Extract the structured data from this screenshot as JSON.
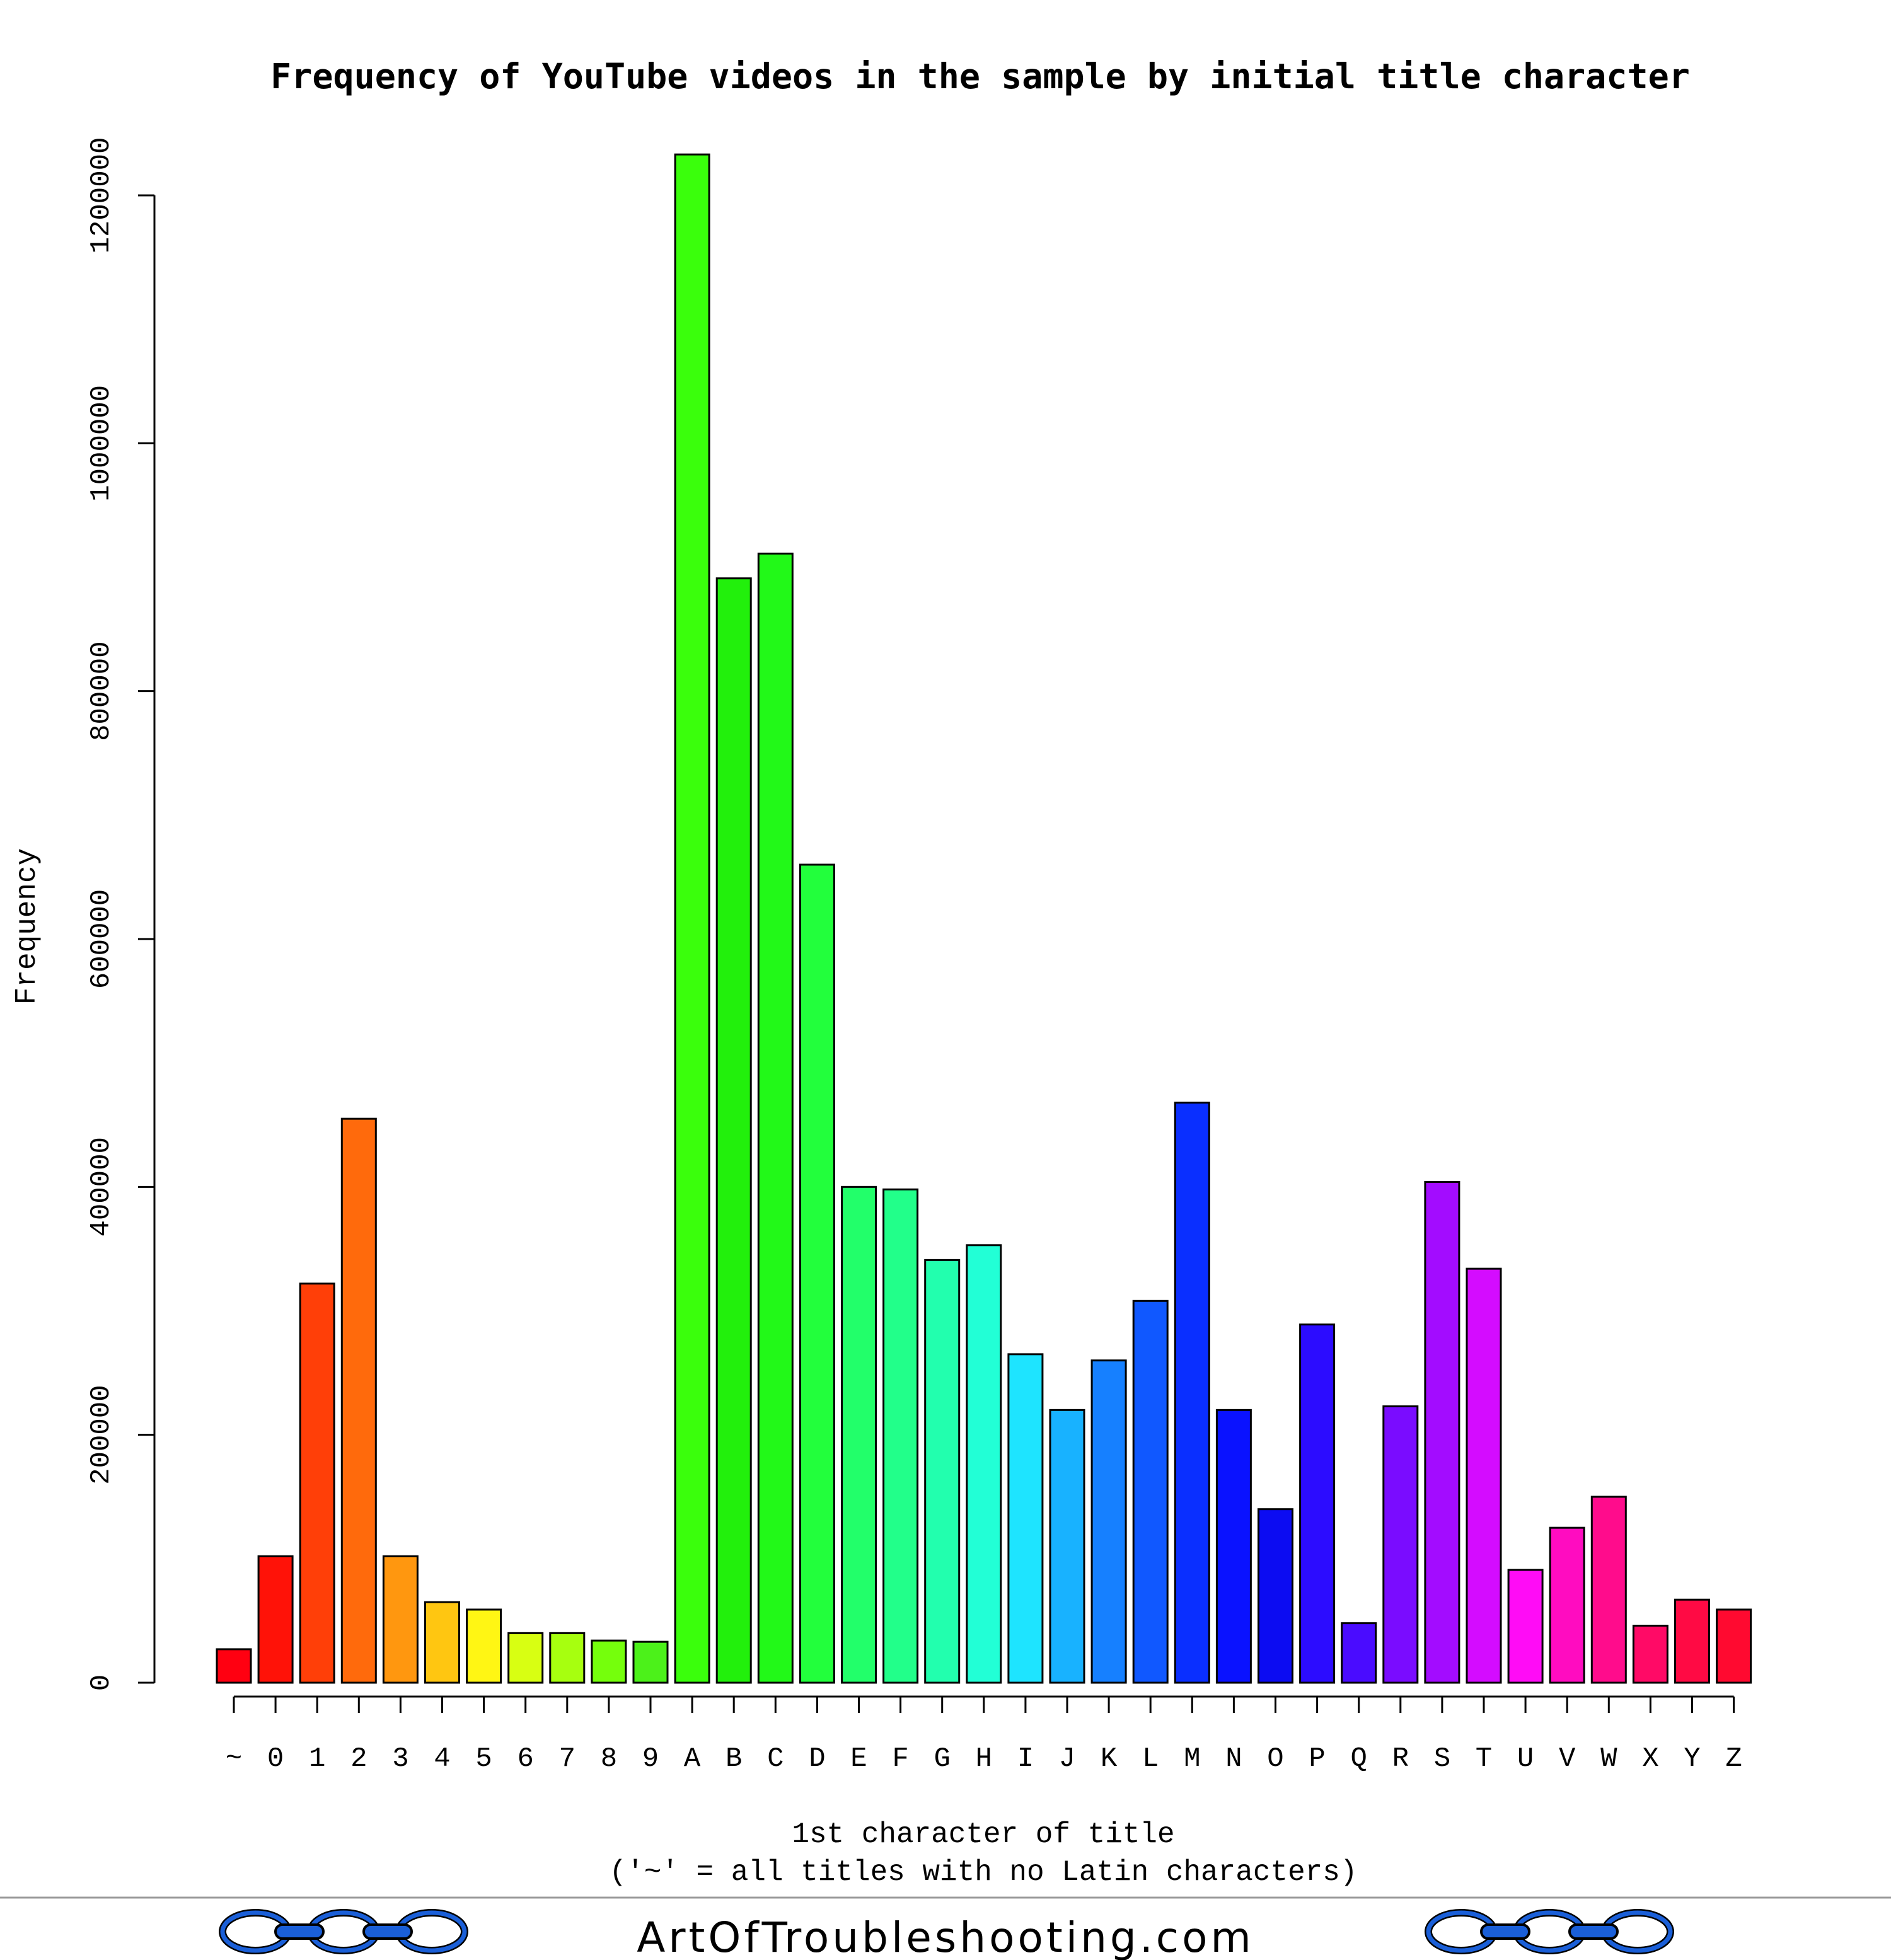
{
  "chart_data": {
    "type": "bar",
    "title": "Frequency of YouTube videos in the sample by initial title character",
    "xlabel": "1st character of title",
    "xlabel_note": "('~' = all titles with no Latin characters)",
    "ylabel": "Frequency",
    "ylim": [
      0,
      1240000
    ],
    "yticks": [
      0,
      200000,
      400000,
      600000,
      800000,
      1000000,
      1200000
    ],
    "ytick_labels": [
      "0",
      "200000",
      "400000",
      "600000",
      "800000",
      "1000000",
      "1200000"
    ],
    "grid": false,
    "legend": "none",
    "categories": [
      "~",
      "0",
      "1",
      "2",
      "3",
      "4",
      "5",
      "6",
      "7",
      "8",
      "9",
      "A",
      "B",
      "C",
      "D",
      "E",
      "F",
      "G",
      "H",
      "I",
      "J",
      "K",
      "L",
      "M",
      "N",
      "O",
      "P",
      "Q",
      "R",
      "S",
      "T",
      "U",
      "V",
      "W",
      "X",
      "Y",
      "Z"
    ],
    "values": [
      27000,
      102000,
      322000,
      455000,
      102000,
      65000,
      59000,
      40000,
      40000,
      34000,
      33000,
      1233000,
      891000,
      911000,
      660000,
      400000,
      398000,
      341000,
      353000,
      265000,
      220000,
      260000,
      308000,
      468000,
      220000,
      140000,
      289000,
      48000,
      223000,
      404000,
      334000,
      91000,
      125000,
      150000,
      46000,
      67000,
      59000
    ],
    "colors": [
      "#ff0011",
      "#ff1208",
      "#ff3f08",
      "#ff6a0c",
      "#ff970f",
      "#ffc611",
      "#fff614",
      "#d8ff12",
      "#a7ff0f",
      "#75ff0c",
      "#4cf11a",
      "#3aff0c",
      "#22f00c",
      "#22f918",
      "#22ff3c",
      "#22ff6a",
      "#22ff8a",
      "#22ffae",
      "#22ffd6",
      "#1ee4ff",
      "#18b2ff",
      "#1680ff",
      "#1058ff",
      "#0a2fff",
      "#0a12ff",
      "#0c0cf2",
      "#2c0cff",
      "#4a0cff",
      "#7a0cff",
      "#a30cff",
      "#d40cff",
      "#ff0cf6",
      "#ff0cc0",
      "#ff0c8c",
      "#ff0a66",
      "#ff0a44",
      "#ff0a30"
    ]
  },
  "footer": {
    "site": "ArtOfTroubleshooting.com",
    "logo_icon": "chain-link-icon",
    "logo_color": "#1a5fd8"
  }
}
